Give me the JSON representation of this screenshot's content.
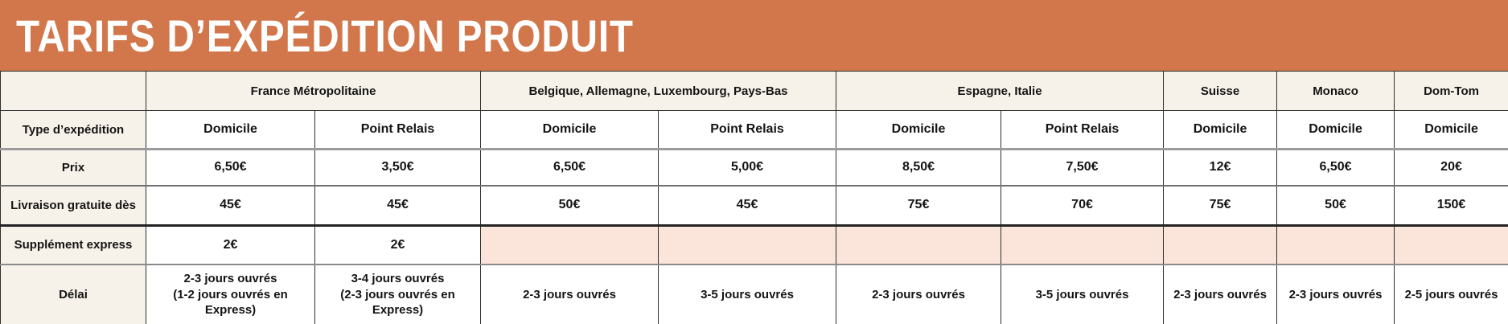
{
  "banner": {
    "title": "TARIFS D’EXPÉDITION PRODUIT"
  },
  "colors": {
    "banner_bg": "#d2774b",
    "banner_text": "#ffffff",
    "header_cell_bg": "#f6f2e9",
    "empty_cell_bg": "#fbe5db",
    "text": "#141414"
  },
  "table": {
    "region_groups": [
      {
        "label": "",
        "span": 1
      },
      {
        "label": "France Métropolitaine",
        "span": 2
      },
      {
        "label": "Belgique, Allemagne, Luxembourg, Pays-Bas",
        "span": 2
      },
      {
        "label": "Espagne, Italie",
        "span": 2
      },
      {
        "label": "Suisse",
        "span": 1
      },
      {
        "label": "Monaco",
        "span": 1
      },
      {
        "label": "Dom-Tom",
        "span": 1
      }
    ],
    "rows": [
      {
        "label": "Type d’expédition",
        "cells": [
          "Domicile",
          "Point Relais",
          "Domicile",
          "Point Relais",
          "Domicile",
          "Point Relais",
          "Domicile",
          "Domicile",
          "Domicile"
        ],
        "empty_highlight": false
      },
      {
        "label": "Prix",
        "cells": [
          "6,50€",
          "3,50€",
          "6,50€",
          "5,00€",
          "8,50€",
          "7,50€",
          "12€",
          "6,50€",
          "20€"
        ],
        "empty_highlight": false
      },
      {
        "label": "Livraison gratuite dès",
        "cells": [
          "45€",
          "45€",
          "50€",
          "45€",
          "75€",
          "70€",
          "75€",
          "50€",
          "150€"
        ],
        "empty_highlight": false
      },
      {
        "label": "Supplément express",
        "cells": [
          "2€",
          "2€",
          "",
          "",
          "",
          "",
          "",
          "",
          ""
        ],
        "empty_highlight": true
      },
      {
        "label": "Délai",
        "cells": [
          "2-3 jours ouvrés\n(1-2 jours ouvrés en Express)",
          "3-4 jours ouvrés\n(2-3 jours ouvrés en Express)",
          "2-3 jours ouvrés",
          "3-5 jours ouvrés",
          "2-3 jours ouvrés",
          "3-5 jours ouvrés",
          "2-3 jours ouvrés",
          "2-3 jours ouvrés",
          "2-5 jours ouvrés"
        ],
        "empty_highlight": false
      }
    ]
  }
}
